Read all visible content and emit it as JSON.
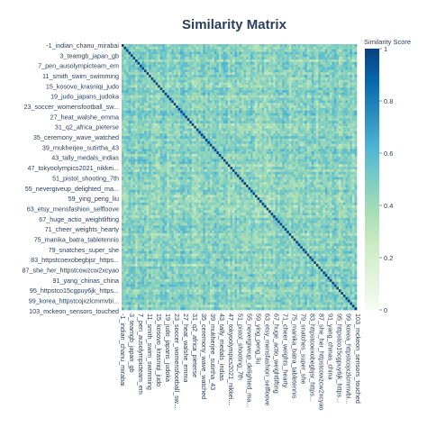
{
  "chart_data": {
    "type": "heatmap",
    "title": "Similarity Matrix",
    "n": 104,
    "diagonal_value": 1,
    "off_diagonal_mean": 0.45,
    "off_diagonal_range": [
      0.25,
      0.65
    ],
    "note_values": "Individual cell values are not legible; matrix rendered as estimated similarity around the mean with a value of 1 on the diagonal.",
    "y_tick_labels": [
      "-1_indian_chanu_mirabai",
      "3_teamgb_japan_gb",
      "7_pen_ausolympicteam_em",
      "11_smith_swim_swimming",
      "15_kosovo_krasniqi_judo",
      "19_judo_japans_judoka",
      "23_soccer_womensfootball_sw...",
      "27_heat_walshe_emma",
      "31_q2_africa_pieterse",
      "35_ceremony_wave_watched",
      "39_mukherjee_sutirtha_43",
      "43_tally_medals_indias",
      "47_tokyoolympics2021_nikkei...",
      "51_pistol_shooting_7th",
      "55_nevergiveup_delighted_ma...",
      "59_ying_peng_liu",
      "63_etsy_mensfashion_selfloove",
      "67_huge_actio_weightlifting",
      "71_cheer_weights_hearty",
      "75_manika_batra_tabletennis",
      "79_snatches_super_she",
      "83_httpstcoexobegbjsr_https...",
      "87_she_her_httpstcowzcw2xcyao",
      "91_yang_chinas_china",
      "95_httpstco15cgpuy6jk_https...",
      "99_korea_httpstcojxzlcmmvbi...",
      "103_mckeon_sensors_touched"
    ],
    "x_tick_labels": [
      "-1_indian_chanu_mirabai",
      "3_teamgb_japan_gb",
      "7_pen_ausolympicteam_em",
      "11_smith_swim_swimming",
      "15_kosovo_krasniqi_judo",
      "19_judo_japans_judoka",
      "23_soccer_womensfootball_sw...",
      "27_heat_walshe_emma",
      "31_q2_africa_pieterse",
      "35_ceremony_wave_watched",
      "39_mukherjee_sutirtha_43",
      "43_tally_medals_indias",
      "47_tokyoolympics2021_nikkei...",
      "51_pistol_shooting_7th",
      "55_nevergiveup_delighted_ma...",
      "59_ying_peng_liu",
      "63_etsy_mensfashion_selfloove",
      "67_huge_actio_weightlifting",
      "71_cheer_weights_hearty",
      "75_manika_batra_tabletennis",
      "79_snatches_super_she",
      "83_httpstcoexobegbjsr_https...",
      "87_she_her_httpstcowzcw2xcyao",
      "91_yang_chinas_china",
      "95_httpstco15cgpuy6jk_https...",
      "99_korea_httpstcojxzlcmmvbi...",
      "103_mckeon_sensors_touched"
    ],
    "colorbar": {
      "title": "Similarity Score",
      "range": [
        0,
        1
      ],
      "tick_values": [
        0,
        0.2,
        0.4,
        0.6,
        0.8,
        1
      ],
      "tick_labels": [
        "0",
        "0.2",
        "0.4",
        "0.6",
        "0.8",
        "1"
      ],
      "colorscale": [
        "#f7fcf0",
        "#e0f3db",
        "#ccebc5",
        "#a8ddb5",
        "#7bccc4",
        "#4eb3d3",
        "#2b8cbe",
        "#0868ac",
        "#084081"
      ]
    },
    "grid": false,
    "legend": "none"
  }
}
